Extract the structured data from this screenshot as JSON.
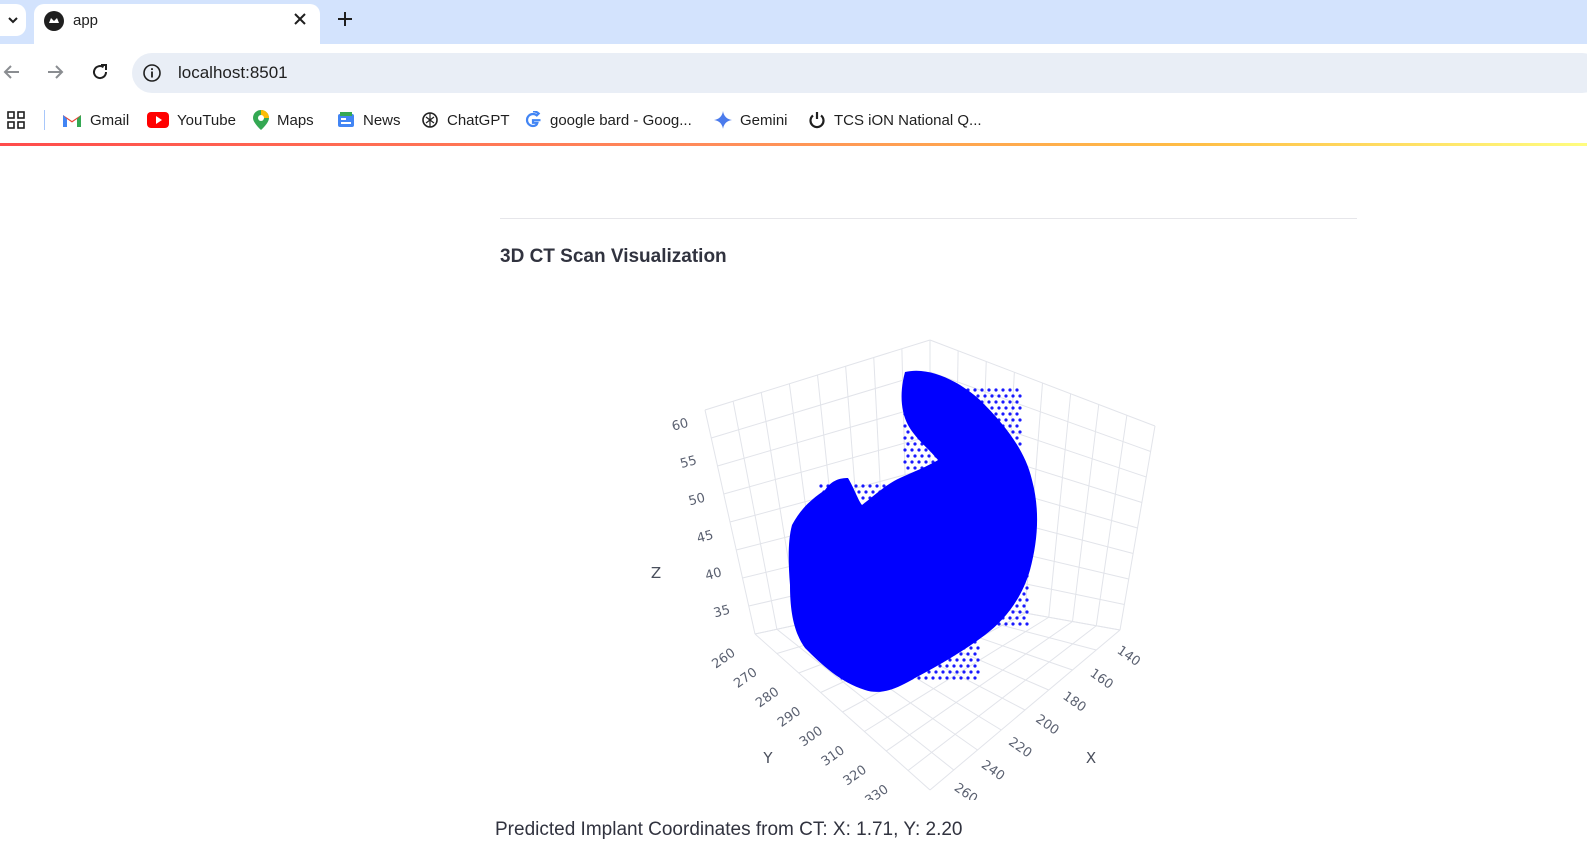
{
  "browser": {
    "tab": {
      "title": "app"
    },
    "address": {
      "url": "localhost:8501"
    },
    "bookmarks": [
      {
        "label": "Gmail",
        "icon": "gmail-icon"
      },
      {
        "label": "YouTube",
        "icon": "youtube-icon"
      },
      {
        "label": "Maps",
        "icon": "maps-icon"
      },
      {
        "label": "News",
        "icon": "news-icon"
      },
      {
        "label": "ChatGPT",
        "icon": "chatgpt-icon"
      },
      {
        "label": "google bard - Goog...",
        "icon": "google-icon"
      },
      {
        "label": "Gemini",
        "icon": "gemini-icon"
      },
      {
        "label": "TCS iON National Q...",
        "icon": "power-icon"
      }
    ]
  },
  "page": {
    "heading": "3D CT Scan Visualization",
    "prediction_text": "Predicted Implant Coordinates from CT: X: 1.71, Y: 2.20"
  },
  "chart_data": {
    "type": "scatter",
    "mode": "3d",
    "marker_color": "#0000ff",
    "axes": {
      "x": {
        "title": "X",
        "ticks": [
          "140",
          "160",
          "180",
          "200",
          "220",
          "240",
          "260"
        ]
      },
      "y": {
        "title": "Y",
        "ticks": [
          "260",
          "270",
          "280",
          "290",
          "300",
          "310",
          "320",
          "330"
        ]
      },
      "z": {
        "title": "Z",
        "ticks": [
          "35",
          "40",
          "45",
          "50",
          "55",
          "60"
        ]
      }
    },
    "grid": true
  }
}
